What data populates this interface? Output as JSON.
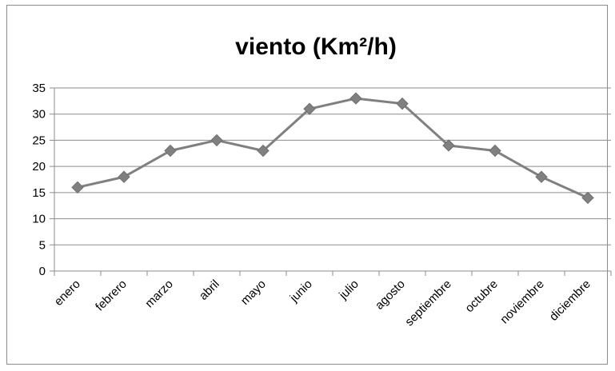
{
  "chart_data": {
    "type": "line",
    "title": "viento (Km²/h)",
    "xlabel": "",
    "ylabel": "",
    "categories": [
      "enero",
      "febrero",
      "marzo",
      "abril",
      "mayo",
      "junio",
      "julio",
      "agosto",
      "septiembre",
      "octubre",
      "noviembre",
      "diciembre"
    ],
    "series": [
      {
        "values": [
          16,
          18,
          23,
          25,
          23,
          31,
          33,
          32,
          24,
          23,
          18,
          14
        ]
      }
    ],
    "ylim": [
      0,
      35
    ],
    "yticks": [
      0,
      5,
      10,
      15,
      20,
      25,
      30,
      35
    ],
    "grid": true,
    "legend": "none",
    "colors": {
      "line": "#808080",
      "marker": "#808080",
      "grid": "#8c8c8c",
      "axis": "#8c8c8c"
    }
  }
}
